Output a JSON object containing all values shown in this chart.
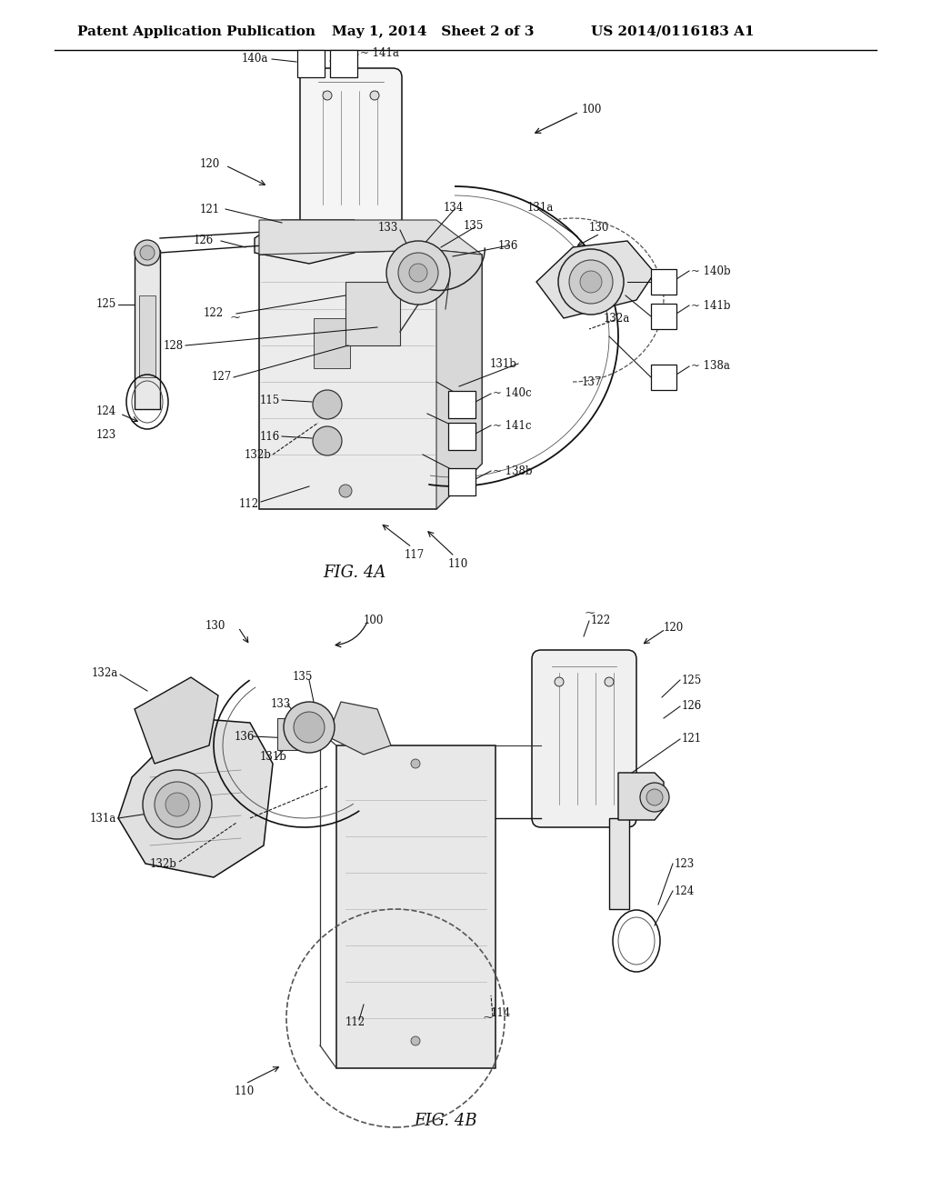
{
  "background_color": "#ffffff",
  "header_left": "Patent Application Publication",
  "header_center": "May 1, 2014   Sheet 2 of 3",
  "header_right": "US 2014/0116183 A1",
  "fig4a_label": "FIG. 4A",
  "fig4b_label": "FIG. 4B",
  "header_fontsize": 11,
  "label_fontsize": 8.5,
  "fig_label_fontsize": 13,
  "line_color": "#111111",
  "lw": 1.0
}
